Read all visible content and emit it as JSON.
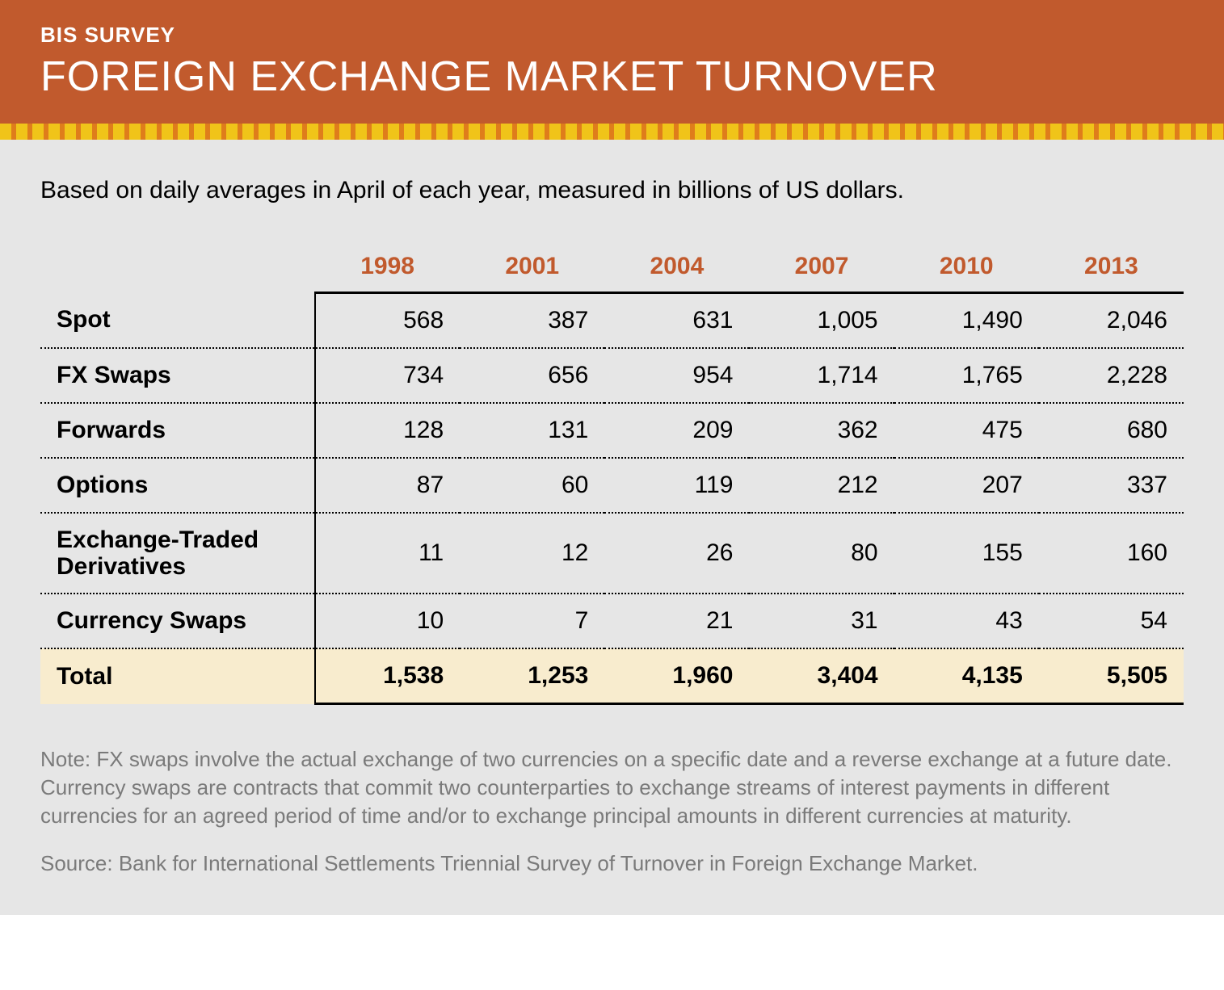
{
  "header": {
    "eyebrow": "BIS SURVEY",
    "title": "FOREIGN EXCHANGE MARKET TURNOVER",
    "bg_color": "#c15a2d",
    "text_color": "#ffffff",
    "eyebrow_fontsize": 26,
    "title_fontsize": 52,
    "stripe_color_a": "#f0c419",
    "stripe_color_b": "#df7d1b"
  },
  "intro": "Based on daily averages in April of each year, measured in billions of US dollars.",
  "table": {
    "type": "table",
    "header_color": "#c15a2d",
    "header_fontsize": 30,
    "body_fontsize": 30,
    "row_label_weight": 700,
    "value_align": "right",
    "divider_style": "dotted",
    "divider_color": "#000000",
    "solid_rule_color": "#000000",
    "columns": [
      "1998",
      "2001",
      "2004",
      "2007",
      "2010",
      "2013"
    ],
    "rows": [
      {
        "label": "Spot",
        "values": [
          "568",
          "387",
          "631",
          "1,005",
          "1,490",
          "2,046"
        ]
      },
      {
        "label": "FX Swaps",
        "values": [
          "734",
          "656",
          "954",
          "1,714",
          "1,765",
          "2,228"
        ]
      },
      {
        "label": "Forwards",
        "values": [
          "128",
          "131",
          "209",
          "362",
          "475",
          "680"
        ]
      },
      {
        "label": "Options",
        "values": [
          "87",
          "60",
          "119",
          "212",
          "207",
          "337"
        ]
      },
      {
        "label": "Exchange-Traded Derivatives",
        "twoline": true,
        "values": [
          "11",
          "12",
          "26",
          "80",
          "155",
          "160"
        ]
      },
      {
        "label": "Currency Swaps",
        "values": [
          "10",
          "7",
          "21",
          "31",
          "43",
          "54"
        ]
      }
    ],
    "total": {
      "label": "Total",
      "values": [
        "1,538",
        "1,253",
        "1,960",
        "3,404",
        "4,135",
        "5,505"
      ],
      "bg_color": "#f8ecce"
    }
  },
  "note": "Note: FX swaps involve the actual exchange of two currencies on a specific date and a reverse exchange at a future date. Currency swaps are contracts that commit two counterparties to exchange streams of interest payments in different currencies for an agreed period of time and/or to exchange principal amounts in different currencies at maturity.",
  "source": "Source: Bank for International Settlements Triennial Survey of Turnover in Foreign Exchange Market.",
  "colors": {
    "page_bg": "#e6e6e6",
    "note_text": "#7a7a7a"
  }
}
